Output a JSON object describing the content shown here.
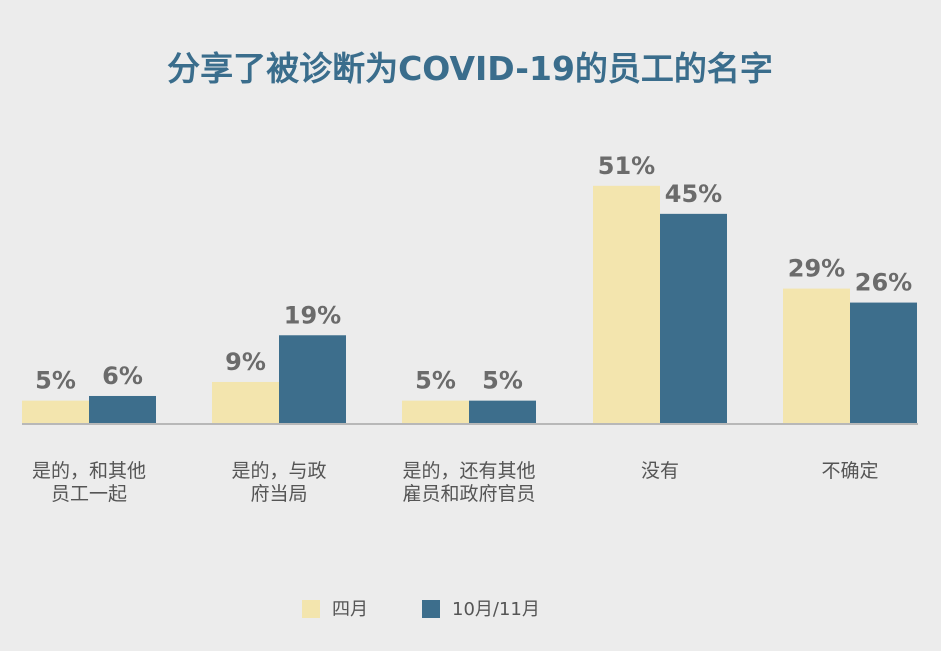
{
  "chart_data": {
    "type": "bar",
    "title": "分享了被诊断为COVID-19的员工的名字",
    "categories": [
      [
        "是的，和其他",
        "员工一起"
      ],
      [
        "是的，与政",
        "府当局"
      ],
      [
        "是的，还有其他",
        "雇员和政府官员"
      ],
      [
        "没有"
      ],
      [
        "不确定"
      ]
    ],
    "series": [
      {
        "name": "四月",
        "values": [
          5,
          9,
          5,
          51,
          29
        ],
        "labels": [
          "5%",
          "9%",
          "5%",
          "51%",
          "29%"
        ],
        "color": "#f3e5ae"
      },
      {
        "name": "10月/11月",
        "values": [
          6,
          19,
          5,
          45,
          26
        ],
        "labels": [
          "6%",
          "19%",
          "5%",
          "45%",
          "26%"
        ],
        "color": "#3d6e8c"
      }
    ],
    "ylim": [
      0,
      60
    ],
    "grid": false,
    "legend_position": "bottom-center",
    "colors": {
      "title": "#3a6d8c",
      "axis": "#b8b8b8",
      "value_label": "#6b6b6b",
      "category_label": "#555555",
      "background": "#ececec"
    }
  }
}
